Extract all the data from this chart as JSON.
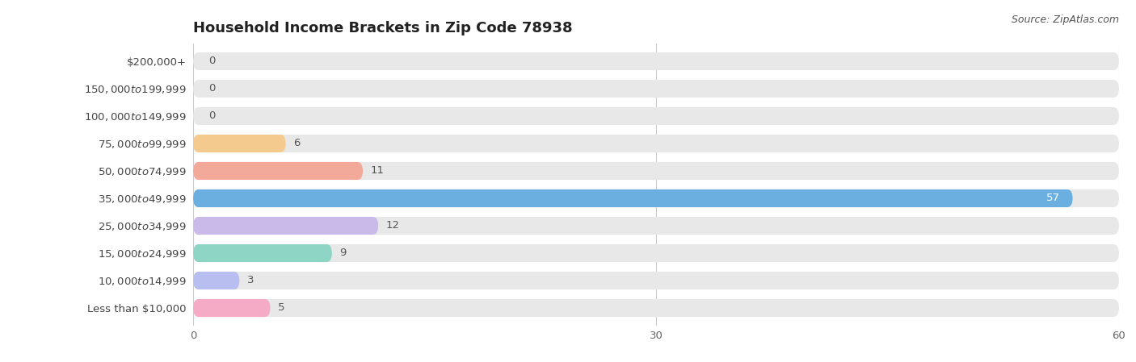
{
  "title": "Household Income Brackets in Zip Code 78938",
  "source": "Source: ZipAtlas.com",
  "categories": [
    "Less than $10,000",
    "$10,000 to $14,999",
    "$15,000 to $24,999",
    "$25,000 to $34,999",
    "$35,000 to $49,999",
    "$50,000 to $74,999",
    "$75,000 to $99,999",
    "$100,000 to $149,999",
    "$150,000 to $199,999",
    "$200,000+"
  ],
  "values": [
    0,
    0,
    0,
    6,
    11,
    57,
    12,
    9,
    3,
    5
  ],
  "bar_colors": [
    "#82d9d5",
    "#b3aee0",
    "#f4a7b8",
    "#f5ca8e",
    "#f2a99a",
    "#6aafe0",
    "#c9baea",
    "#8ed5c5",
    "#b8bff0",
    "#f5aac5"
  ],
  "bar_bg_color": "#e8e8e8",
  "xlim": [
    0,
    60
  ],
  "xticks": [
    0,
    30,
    60
  ],
  "background_color": "#ffffff",
  "title_fontsize": 13,
  "label_fontsize": 9.5,
  "tick_fontsize": 9.5,
  "source_fontsize": 9,
  "bar_height": 0.65,
  "value_label_color_inside": "#ffffff",
  "value_label_color_outside": "#555555",
  "grid_color": "#cccccc",
  "title_color": "#222222",
  "label_color": "#444444",
  "tick_color": "#666666"
}
